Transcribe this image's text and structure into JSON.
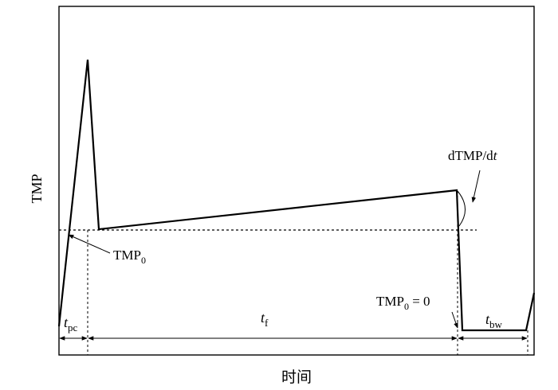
{
  "axes": {
    "ylabel": "TMP",
    "xlabel": "时间"
  },
  "annotations": {
    "tmp0_label": "TMP",
    "tmp0_sub": "0",
    "tmp0_eq_label": "TMP",
    "tmp0_eq_sub": "0",
    "tmp0_eq_rest": " = 0",
    "slope_label_prefix": "dTMP/d",
    "slope_label_var": "t"
  },
  "intervals": {
    "pc_var": "t",
    "pc_sub": "pc",
    "f_var": "t",
    "f_sub": "f",
    "bw_var": "t",
    "bw_sub": "bw"
  }
}
